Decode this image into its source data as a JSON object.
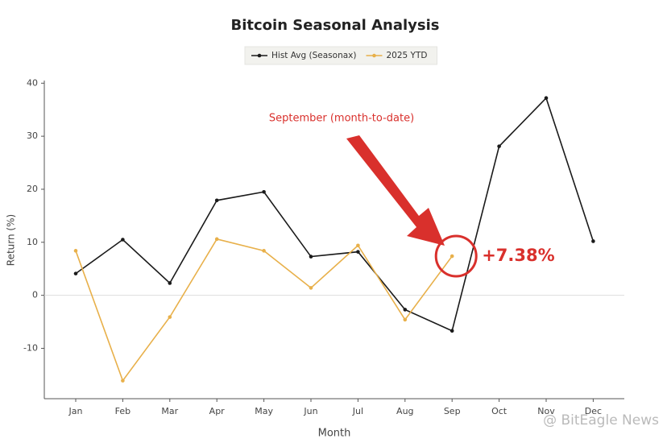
{
  "chart_data": {
    "type": "line",
    "title": "Bitcoin Seasonal Analysis",
    "xlabel": "Month",
    "ylabel": "Return (%)",
    "categories": [
      "Jan",
      "Feb",
      "Mar",
      "Apr",
      "May",
      "Jun",
      "Jul",
      "Aug",
      "Sep",
      "Oct",
      "Nov",
      "Dec"
    ],
    "series": [
      {
        "name": "Hist Avg (Seasonax)",
        "color": "#1a1a1a",
        "values": [
          4.1,
          10.5,
          2.3,
          17.9,
          19.5,
          7.3,
          8.2,
          -2.7,
          -6.7,
          28.1,
          37.2,
          10.2
        ]
      },
      {
        "name": "2025 YTD",
        "color": "#e8b04a",
        "values": [
          8.4,
          -16.1,
          -4.1,
          10.6,
          8.4,
          1.4,
          9.4,
          -4.6,
          7.38,
          null,
          null,
          null
        ],
        "value_labels": [
          null,
          null,
          null,
          null,
          null,
          null,
          null,
          null,
          "+7.38%",
          null,
          null,
          null
        ]
      }
    ],
    "ylim": [
      -19.5,
      40.5
    ],
    "yticks": [
      -10,
      0,
      10,
      20,
      30,
      40
    ],
    "hlines": [
      0
    ],
    "legend": "top",
    "annotation": "September (month-to-date)",
    "annotation_color": "#d9302c",
    "watermark": "@ BitEagle News"
  }
}
